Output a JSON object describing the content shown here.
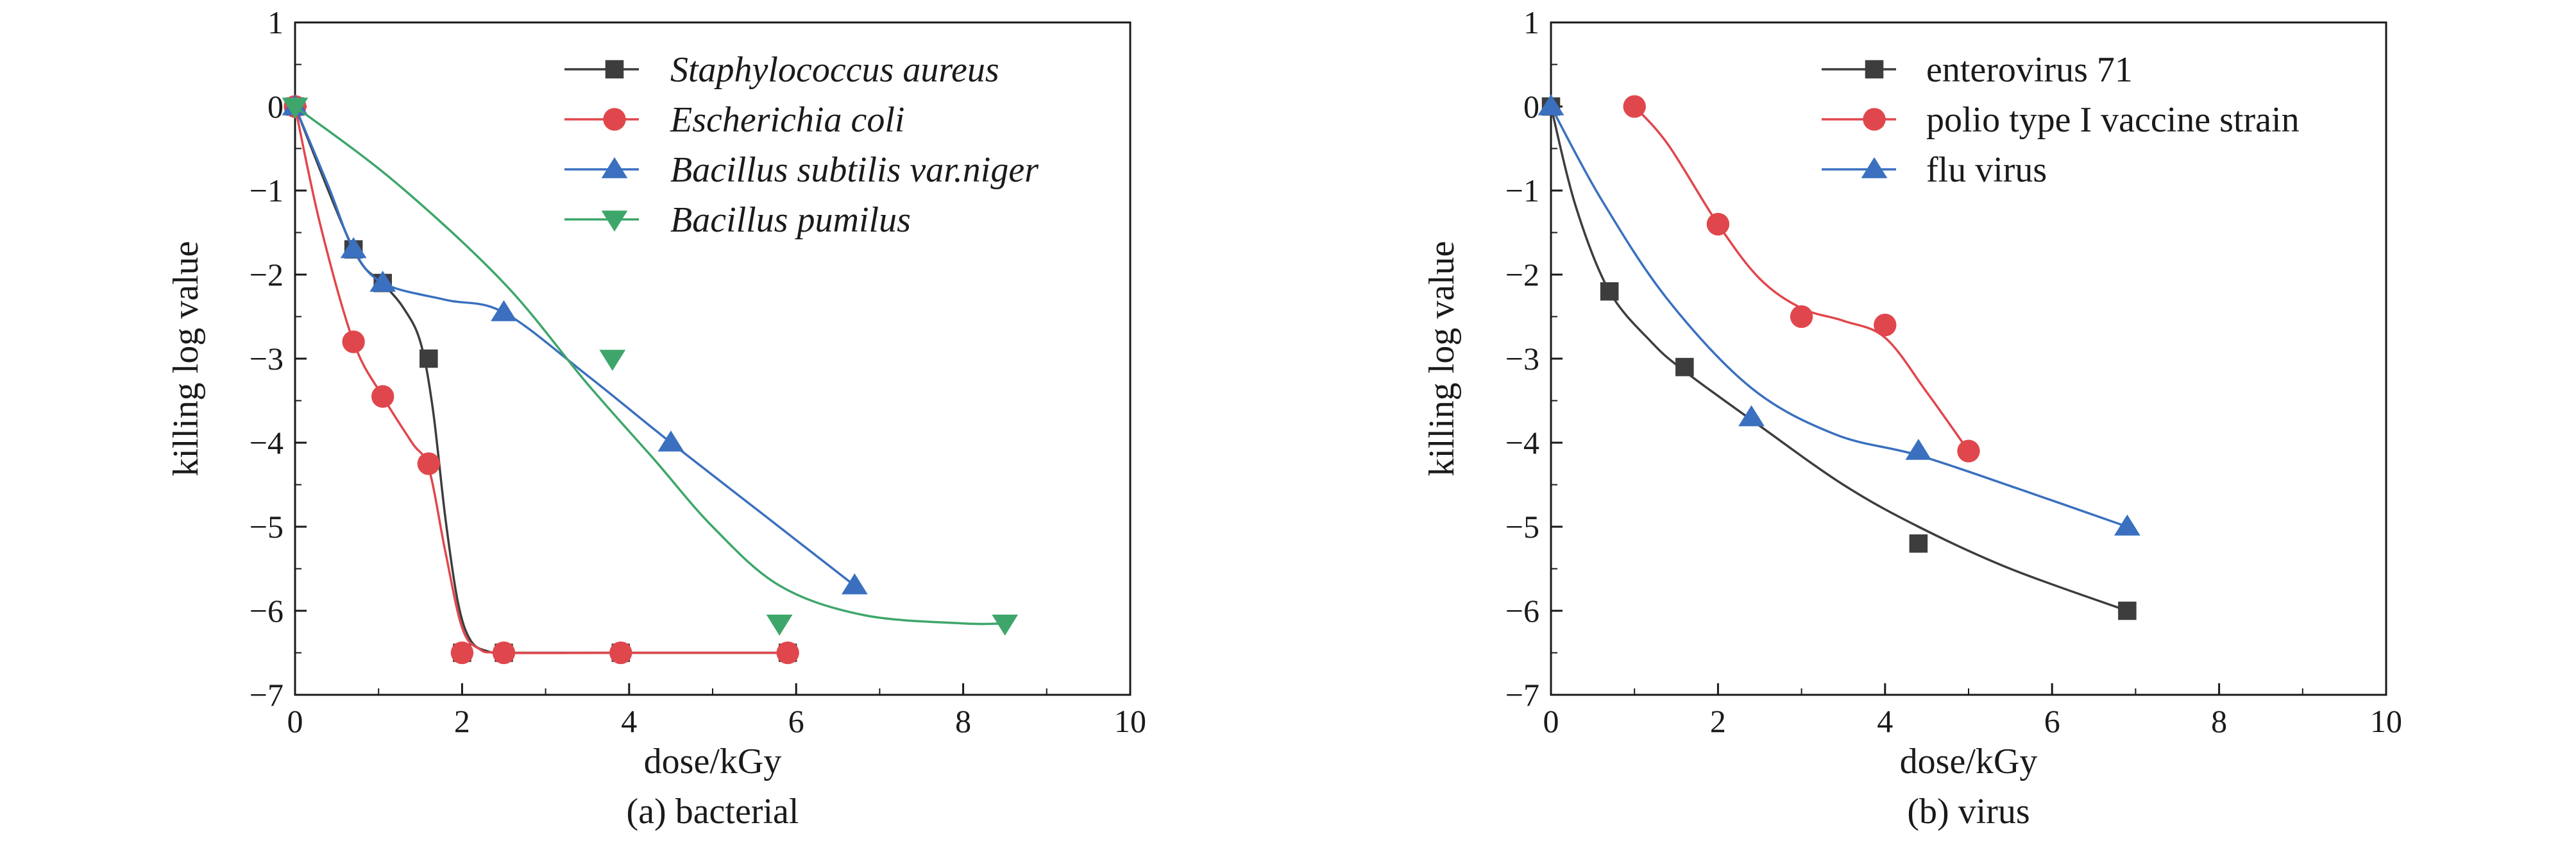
{
  "chart_data": [
    {
      "type": "line",
      "caption": "(a) bacterial",
      "xlabel": "dose/kGy",
      "ylabel": "killing log value",
      "xlim": [
        0,
        10
      ],
      "ylim": [
        -7,
        1
      ],
      "xticks": [
        0,
        2,
        4,
        6,
        8,
        10
      ],
      "yticks": [
        1,
        0,
        -1,
        -2,
        -3,
        -4,
        -5,
        -6,
        -7
      ],
      "grid": false,
      "legend_position": "top-right",
      "legend_italic": true,
      "series": [
        {
          "name": "Staphylococcus aureus",
          "color": "#3d3d3d",
          "marker": "square",
          "points": [
            [
              0,
              0
            ],
            [
              0.7,
              -1.7
            ],
            [
              1.05,
              -2.1
            ],
            [
              1.6,
              -3.0
            ],
            [
              2.0,
              -6.5
            ],
            [
              2.5,
              -6.5
            ],
            [
              3.9,
              -6.5
            ],
            [
              5.9,
              -6.5
            ]
          ],
          "curve": [
            [
              0,
              0
            ],
            [
              0.7,
              -1.7
            ],
            [
              1.05,
              -2.1
            ],
            [
              1.3,
              -2.4
            ],
            [
              1.5,
              -2.8
            ],
            [
              1.65,
              -3.6
            ],
            [
              1.8,
              -4.9
            ],
            [
              1.95,
              -5.9
            ],
            [
              2.1,
              -6.35
            ],
            [
              2.3,
              -6.48
            ],
            [
              2.6,
              -6.5
            ],
            [
              3.9,
              -6.5
            ],
            [
              5.9,
              -6.5
            ]
          ]
        },
        {
          "name": "Escherichia coli",
          "color": "#e0474c",
          "marker": "circle",
          "points": [
            [
              0,
              0
            ],
            [
              0.7,
              -2.8
            ],
            [
              1.05,
              -3.45
            ],
            [
              1.6,
              -4.25
            ],
            [
              2.0,
              -6.5
            ],
            [
              2.5,
              -6.5
            ],
            [
              3.9,
              -6.5
            ],
            [
              5.9,
              -6.5
            ]
          ],
          "curve": [
            [
              0,
              0
            ],
            [
              0.3,
              -1.4
            ],
            [
              0.7,
              -2.8
            ],
            [
              1.05,
              -3.45
            ],
            [
              1.4,
              -4.0
            ],
            [
              1.6,
              -4.3
            ],
            [
              1.8,
              -5.3
            ],
            [
              2.0,
              -6.2
            ],
            [
              2.2,
              -6.45
            ],
            [
              2.5,
              -6.5
            ],
            [
              3.9,
              -6.5
            ],
            [
              5.9,
              -6.5
            ]
          ]
        },
        {
          "name": "Bacillus subtilis var.niger",
          "color": "#3a70bf",
          "marker": "triangle-up",
          "points": [
            [
              0,
              0
            ],
            [
              0.7,
              -1.7
            ],
            [
              1.05,
              -2.1
            ],
            [
              2.5,
              -2.45
            ],
            [
              4.5,
              -4.0
            ],
            [
              6.7,
              -5.7
            ]
          ],
          "curve": [
            [
              0,
              0
            ],
            [
              0.4,
              -0.95
            ],
            [
              0.7,
              -1.7
            ],
            [
              1.05,
              -2.1
            ],
            [
              1.8,
              -2.3
            ],
            [
              2.5,
              -2.45
            ],
            [
              3.5,
              -3.2
            ],
            [
              4.5,
              -4.0
            ],
            [
              5.6,
              -4.85
            ],
            [
              6.7,
              -5.7
            ]
          ]
        },
        {
          "name": "Bacillus pumilus",
          "color": "#3ea66a",
          "marker": "triangle-down",
          "points": [
            [
              0,
              0
            ],
            [
              3.8,
              -3.0
            ],
            [
              5.8,
              -6.15
            ],
            [
              8.5,
              -6.15
            ]
          ],
          "curve": [
            [
              0,
              0
            ],
            [
              1.2,
              -0.9
            ],
            [
              2.5,
              -2.1
            ],
            [
              3.5,
              -3.3
            ],
            [
              4.3,
              -4.2
            ],
            [
              5.0,
              -5.0
            ],
            [
              5.8,
              -5.7
            ],
            [
              6.8,
              -6.05
            ],
            [
              8.0,
              -6.15
            ],
            [
              8.5,
              -6.15
            ]
          ]
        }
      ]
    },
    {
      "type": "line",
      "caption": "(b) virus",
      "xlabel": "dose/kGy",
      "ylabel": "killing log value",
      "xlim": [
        0,
        10
      ],
      "ylim": [
        -7,
        1
      ],
      "xticks": [
        0,
        2,
        4,
        6,
        8,
        10
      ],
      "yticks": [
        1,
        0,
        -1,
        -2,
        -3,
        -4,
        -5,
        -6,
        -7
      ],
      "grid": false,
      "legend_position": "top-right",
      "legend_italic": false,
      "series": [
        {
          "name": "enterovirus 71",
          "color": "#3d3d3d",
          "marker": "square",
          "points": [
            [
              0,
              0
            ],
            [
              0.7,
              -2.2
            ],
            [
              1.6,
              -3.1
            ],
            [
              4.4,
              -5.2
            ],
            [
              6.9,
              -6.0
            ]
          ],
          "curve": [
            [
              0,
              0
            ],
            [
              0.3,
              -1.2
            ],
            [
              0.7,
              -2.2
            ],
            [
              1.2,
              -2.8
            ],
            [
              1.6,
              -3.15
            ],
            [
              2.5,
              -3.8
            ],
            [
              3.5,
              -4.5
            ],
            [
              4.4,
              -5.0
            ],
            [
              5.5,
              -5.5
            ],
            [
              6.9,
              -6.0
            ]
          ]
        },
        {
          "name": "polio type I vaccine strain",
          "color": "#e0474c",
          "marker": "circle",
          "points": [
            [
              1.0,
              0
            ],
            [
              2.0,
              -1.4
            ],
            [
              3.0,
              -2.5
            ],
            [
              4.0,
              -2.6
            ],
            [
              5.0,
              -4.1
            ]
          ],
          "curve": [
            [
              1.0,
              0
            ],
            [
              1.4,
              -0.45
            ],
            [
              2.0,
              -1.4
            ],
            [
              2.5,
              -2.05
            ],
            [
              3.0,
              -2.4
            ],
            [
              3.5,
              -2.55
            ],
            [
              4.0,
              -2.75
            ],
            [
              4.5,
              -3.4
            ],
            [
              5.0,
              -4.1
            ]
          ]
        },
        {
          "name": "flu virus",
          "color": "#3a70bf",
          "marker": "triangle-up",
          "points": [
            [
              0,
              0
            ],
            [
              2.4,
              -3.7
            ],
            [
              4.4,
              -4.1
            ],
            [
              6.9,
              -5.0
            ]
          ],
          "curve": [
            [
              0,
              0
            ],
            [
              0.6,
              -1.1
            ],
            [
              1.4,
              -2.3
            ],
            [
              2.4,
              -3.35
            ],
            [
              3.4,
              -3.9
            ],
            [
              4.4,
              -4.15
            ],
            [
              5.6,
              -4.55
            ],
            [
              6.9,
              -5.0
            ]
          ]
        }
      ]
    }
  ]
}
